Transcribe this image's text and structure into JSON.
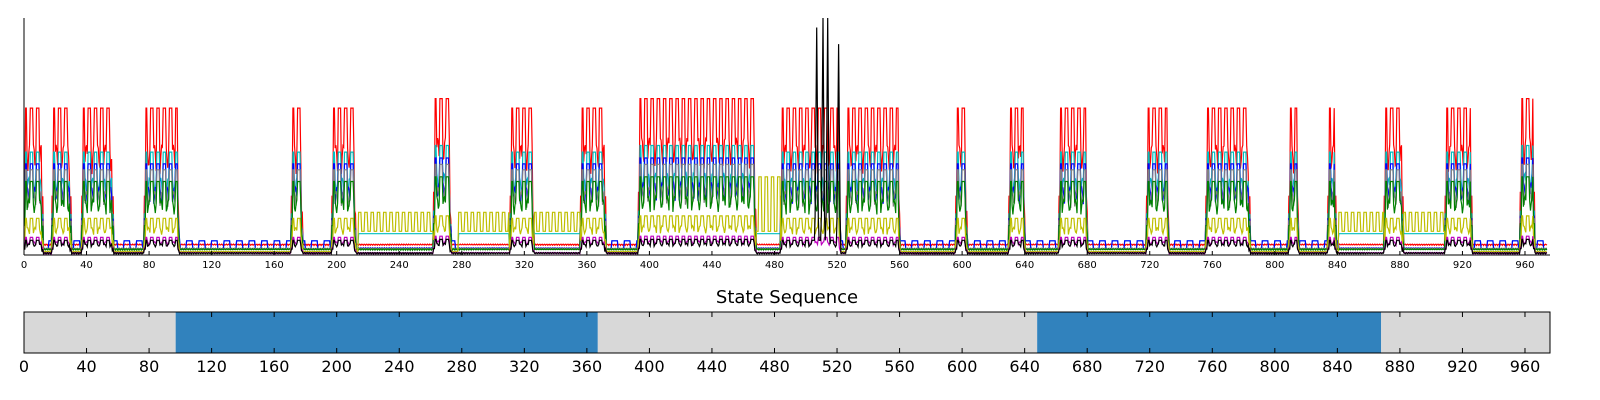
{
  "chart_data": [
    {
      "type": "line",
      "title": "",
      "xlabel": "",
      "ylabel": "",
      "xlim": [
        0,
        976
      ],
      "ylim": [
        0,
        1
      ],
      "grid": false,
      "legend": "none",
      "x_ticks": [
        0,
        40,
        80,
        120,
        160,
        200,
        240,
        280,
        320,
        360,
        400,
        440,
        480,
        520,
        560,
        600,
        640,
        680,
        720,
        760,
        800,
        840,
        880,
        920,
        960
      ],
      "x_tick_labels": [
        "0",
        "40",
        "80",
        "120",
        "160",
        "200",
        "240",
        "280",
        "320",
        "360",
        "400",
        "440",
        "480",
        "520",
        "560",
        "600",
        "640",
        "680",
        "720",
        "760",
        "800",
        "840",
        "880",
        "920",
        "960"
      ],
      "y_ticks": [],
      "series_colors": [
        "#ff0000",
        "#00bfbf",
        "#0000ff",
        "#808080",
        "#008000",
        "#bfbf00",
        "#bf00bf",
        "#000000"
      ],
      "active_blocks": [
        {
          "start": 0,
          "end": 12,
          "level": 0.62
        },
        {
          "start": 18,
          "end": 30,
          "level": 0.62
        },
        {
          "start": 37,
          "end": 57,
          "level": 0.62
        },
        {
          "start": 77,
          "end": 99,
          "level": 0.62
        },
        {
          "start": 171,
          "end": 178,
          "level": 0.62
        },
        {
          "start": 197,
          "end": 212,
          "level": 0.62
        },
        {
          "start": 262,
          "end": 273,
          "level": 0.66
        },
        {
          "start": 311,
          "end": 326,
          "level": 0.62
        },
        {
          "start": 356,
          "end": 372,
          "level": 0.62
        },
        {
          "start": 393,
          "end": 468,
          "level": 0.66
        },
        {
          "start": 484,
          "end": 522,
          "level": 0.62
        },
        {
          "start": 526,
          "end": 560,
          "level": 0.62
        },
        {
          "start": 596,
          "end": 603,
          "level": 0.62
        },
        {
          "start": 630,
          "end": 640,
          "level": 0.62
        },
        {
          "start": 662,
          "end": 680,
          "level": 0.62
        },
        {
          "start": 718,
          "end": 732,
          "level": 0.62
        },
        {
          "start": 756,
          "end": 784,
          "level": 0.62
        },
        {
          "start": 809,
          "end": 815,
          "level": 0.62
        },
        {
          "start": 834,
          "end": 839,
          "level": 0.62
        },
        {
          "start": 870,
          "end": 882,
          "level": 0.62
        },
        {
          "start": 909,
          "end": 926,
          "level": 0.62
        },
        {
          "start": 957,
          "end": 966,
          "level": 0.66
        }
      ],
      "spikes": [
        {
          "x": 507,
          "y": 0.96
        },
        {
          "x": 511,
          "y": 1.0
        },
        {
          "x": 514,
          "y": 1.0
        },
        {
          "x": 521,
          "y": 0.89
        }
      ],
      "yellow_plateaus": [
        {
          "start": 214,
          "end": 262,
          "level": 0.18
        },
        {
          "start": 278,
          "end": 310,
          "level": 0.18
        },
        {
          "start": 326,
          "end": 356,
          "level": 0.18
        },
        {
          "start": 466,
          "end": 484,
          "level": 0.33
        },
        {
          "start": 841,
          "end": 870,
          "level": 0.18
        },
        {
          "start": 882,
          "end": 910,
          "level": 0.18
        }
      ]
    },
    {
      "type": "bar",
      "title": "State Sequence",
      "xlim": [
        0,
        976
      ],
      "x_ticks": [
        0,
        40,
        80,
        120,
        160,
        200,
        240,
        280,
        320,
        360,
        400,
        440,
        480,
        520,
        560,
        600,
        640,
        680,
        720,
        760,
        800,
        840,
        880,
        920,
        960
      ],
      "x_tick_labels": [
        "0",
        "40",
        "80",
        "120",
        "160",
        "200",
        "240",
        "280",
        "320",
        "360",
        "400",
        "440",
        "480",
        "520",
        "560",
        "600",
        "640",
        "680",
        "720",
        "760",
        "800",
        "840",
        "880",
        "920",
        "960"
      ],
      "segments": [
        {
          "start": 0,
          "end": 97,
          "state": 0,
          "color": "#d8d8d8"
        },
        {
          "start": 97,
          "end": 367,
          "state": 1,
          "color": "#3182bd"
        },
        {
          "start": 367,
          "end": 648,
          "state": 0,
          "color": "#d8d8d8"
        },
        {
          "start": 648,
          "end": 868,
          "state": 1,
          "color": "#3182bd"
        },
        {
          "start": 868,
          "end": 976,
          "state": 0,
          "color": "#d8d8d8"
        }
      ]
    }
  ]
}
